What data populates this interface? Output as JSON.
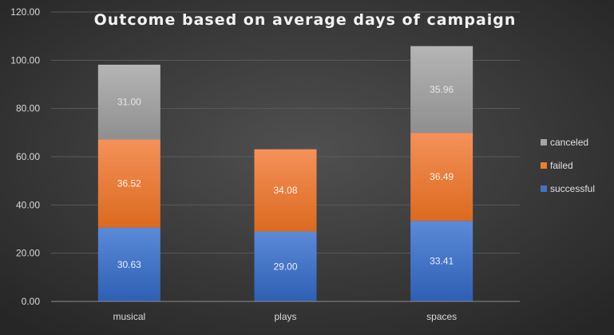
{
  "chart_data": {
    "type": "bar",
    "stacked": true,
    "title": "Outcome based on average days of campaign",
    "xlabel": "",
    "ylabel": "",
    "categories": [
      "musical",
      "plays",
      "spaces"
    ],
    "series": [
      {
        "name": "successful",
        "values": [
          30.63,
          29.0,
          33.41
        ],
        "labels": [
          "30.63",
          "29.00",
          "33.41"
        ],
        "color": "#4472c4"
      },
      {
        "name": "failed",
        "values": [
          36.52,
          34.08,
          36.49
        ],
        "labels": [
          "36.52",
          "34.08",
          "36.49"
        ],
        "color": "#ed7d31"
      },
      {
        "name": "canceled",
        "values": [
          31.0,
          0,
          35.96
        ],
        "labels": [
          "31.00",
          "",
          "35.96"
        ],
        "color": "#a5a5a5"
      }
    ],
    "ylim": [
      0,
      120
    ],
    "yticks": [
      "0.00",
      "20.00",
      "40.00",
      "60.00",
      "80.00",
      "100.00",
      "120.00"
    ],
    "grid": true,
    "legend_position": "right",
    "legend_order": [
      "canceled",
      "failed",
      "successful"
    ],
    "background_color": "#3a3a3a",
    "label_colors": {
      "successful": "#e8eefb",
      "failed": "#fff3ea",
      "canceled": "#e6e6e6"
    }
  }
}
